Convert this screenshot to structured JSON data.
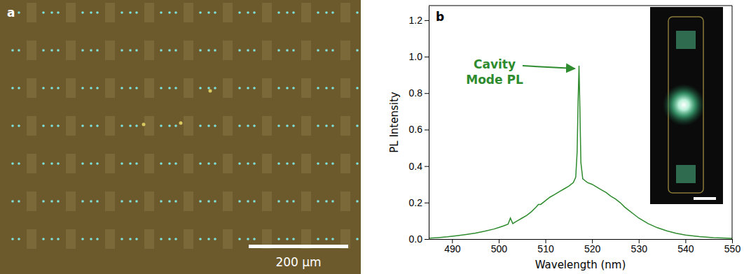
{
  "image_panel": {
    "label": "a",
    "scale_bar": "200 µm"
  },
  "chart_data": {
    "type": "line",
    "panel_label": "b",
    "x_label": "Wavelength (nm)",
    "y_label": "PL Intensity",
    "x": [
      485,
      487,
      489,
      491,
      493,
      495,
      497,
      499,
      500,
      501,
      502,
      502.5,
      503,
      504,
      505,
      506,
      507,
      508,
      508.5,
      509,
      510,
      511,
      512,
      513,
      514,
      515,
      516,
      516.5,
      516.8,
      517,
      517.2,
      517.4,
      517.6,
      518,
      518.5,
      519,
      520,
      521,
      522,
      523,
      524,
      525,
      526,
      527,
      528,
      529,
      530,
      532,
      534,
      536,
      538,
      540,
      543,
      546,
      550
    ],
    "series": [
      {
        "name": "PL",
        "color": "#2e8b2e",
        "values": [
          0.005,
          0.008,
          0.012,
          0.018,
          0.025,
          0.033,
          0.043,
          0.055,
          0.063,
          0.072,
          0.082,
          0.115,
          0.085,
          0.1,
          0.115,
          0.13,
          0.15,
          0.175,
          0.19,
          0.19,
          0.21,
          0.23,
          0.245,
          0.26,
          0.275,
          0.29,
          0.31,
          0.34,
          0.48,
          0.75,
          0.95,
          0.7,
          0.42,
          0.33,
          0.32,
          0.31,
          0.3,
          0.285,
          0.27,
          0.255,
          0.235,
          0.22,
          0.2,
          0.175,
          0.155,
          0.135,
          0.115,
          0.085,
          0.062,
          0.045,
          0.032,
          0.022,
          0.013,
          0.008,
          0.004
        ]
      }
    ],
    "xlim": [
      485,
      550
    ],
    "xticks": [
      490,
      500,
      510,
      520,
      530,
      540,
      550
    ],
    "ylim": [
      0,
      1.28
    ],
    "yticks": [
      {
        "value": 0,
        "label": "0.0"
      },
      {
        "value": 0.2,
        "label": "0.2"
      },
      {
        "value": 0.4,
        "label": "0.4"
      },
      {
        "value": 0.6,
        "label": "0.6"
      },
      {
        "value": 0.8,
        "label": "0.8"
      },
      {
        "value": 1.0,
        "label": "1.0"
      },
      {
        "value": 1.2,
        "label": "1.2"
      }
    ],
    "annotations": [
      {
        "text": "Cavity Mode PL"
      }
    ],
    "grid": false
  }
}
